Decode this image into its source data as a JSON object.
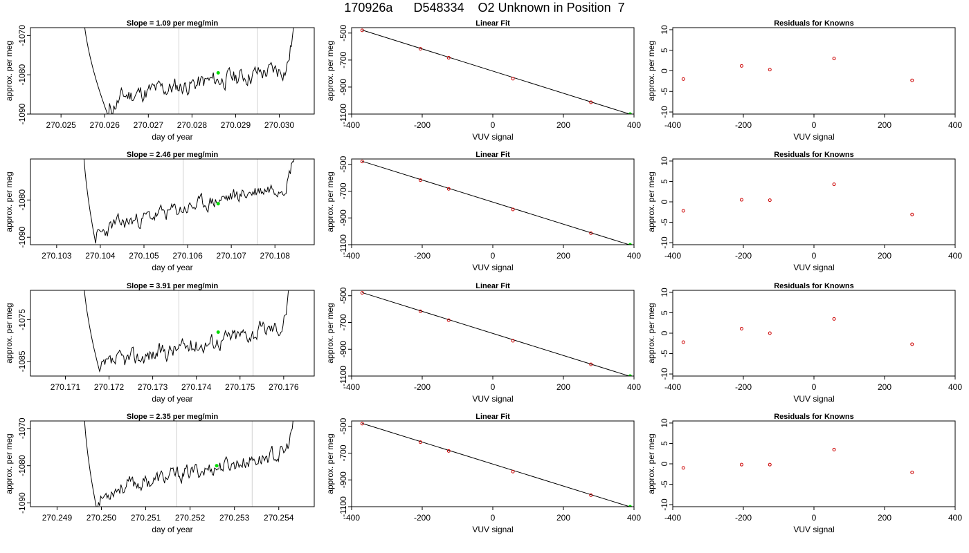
{
  "title": "170926a      D548334    O2 Unknown in Position  7",
  "colors": {
    "trace": "#000000",
    "vline": "#d0d0d0",
    "current": "#00dd00",
    "known": "#cc0000",
    "fit": "#000000"
  },
  "chart_data": [
    {
      "type": "line",
      "title": "Slope =  1.09  per meg/min",
      "xlabel": "day of year",
      "ylabel": "approx. per meg",
      "xlim": [
        270.0243,
        270.0308
      ],
      "ylim": [
        -1090,
        -1068
      ],
      "xticks": [
        270.025,
        270.026,
        270.027,
        270.028,
        270.029,
        270.03
      ],
      "xtick_labels": [
        "270.025",
        "270.026",
        "270.027",
        "270.028",
        "270.029",
        "270.030"
      ],
      "yticks": [
        -1090,
        -1080,
        -1070
      ],
      "ytick_labels": [
        "-1090",
        "-1080",
        "-1070"
      ],
      "vlines": [
        270.0277,
        270.0295
      ],
      "trace": {
        "start": 270.0255,
        "end": 270.0304,
        "first": -1062,
        "dip": -1091,
        "dip_at": 270.0261,
        "trend_start": -1086,
        "trend_end": -1078,
        "tail_to": -1062,
        "noise": 1.8,
        "seed": 11
      },
      "point": {
        "x": 270.0286,
        "y": -1079.5
      }
    },
    {
      "type": "scatter",
      "title": "Linear Fit",
      "xlabel": "VUV signal",
      "ylabel": "approx. per meg",
      "xlim": [
        -400,
        400
      ],
      "ylim": [
        -1100,
        -460
      ],
      "xticks": [
        -400,
        -200,
        0,
        200,
        400
      ],
      "xtick_labels": [
        "-400",
        "-200",
        "0",
        "200",
        "400"
      ],
      "yticks": [
        -500,
        -700,
        -900,
        -1100
      ],
      "ytick_labels": [
        "-500",
        "-700",
        "-900",
        "-1100"
      ],
      "points": [
        {
          "x": -370,
          "y": -480
        },
        {
          "x": -205,
          "y": -617
        },
        {
          "x": -125,
          "y": -683
        },
        {
          "x": 57,
          "y": -838
        },
        {
          "x": 278,
          "y": -1013
        }
      ],
      "line": {
        "x0": -370,
        "y0": -478,
        "x1": 390,
        "y1": -1102
      },
      "current": {
        "x": 389,
        "y": -1100
      }
    },
    {
      "type": "scatter",
      "title": "Residuals for Knowns",
      "xlabel": "VUV signal",
      "ylabel": "approx. per meg",
      "xlim": [
        -400,
        400
      ],
      "ylim": [
        -10.5,
        10.5
      ],
      "xticks": [
        -400,
        -200,
        0,
        200,
        400
      ],
      "xtick_labels": [
        "-400",
        "-200",
        "0",
        "200",
        "400"
      ],
      "yticks": [
        -10,
        -5,
        0,
        5,
        10
      ],
      "ytick_labels": [
        "-10",
        "-5",
        "0",
        "5",
        "10"
      ],
      "points": [
        {
          "x": -370,
          "y": -2.0
        },
        {
          "x": -205,
          "y": 1.2
        },
        {
          "x": -125,
          "y": 0.3
        },
        {
          "x": 57,
          "y": 3.0
        },
        {
          "x": 278,
          "y": -2.3
        }
      ]
    },
    {
      "type": "line",
      "title": "Slope =  2.46  per meg/min",
      "xlabel": "day of year",
      "ylabel": "approx. per meg",
      "xlim": [
        270.1024,
        270.1089
      ],
      "ylim": [
        -1092,
        -1069
      ],
      "xticks": [
        270.103,
        270.104,
        270.105,
        270.106,
        270.107,
        270.108
      ],
      "xtick_labels": [
        "270.103",
        "270.104",
        "270.105",
        "270.106",
        "270.107",
        "270.108"
      ],
      "yticks": [
        -1090,
        -1080
      ],
      "ytick_labels": [
        "-1090",
        "-1080"
      ],
      "vlines": [
        270.1059,
        270.1076
      ],
      "trace": {
        "start": 270.1036,
        "end": 270.1085,
        "first": -1062,
        "dip": -1092,
        "dip_at": 270.1039,
        "trend_start": -1088,
        "trend_end": -1075,
        "tail_to": -1064,
        "noise": 1.6,
        "seed": 23
      },
      "point": {
        "x": 270.1067,
        "y": -1081
      }
    },
    {
      "type": "scatter",
      "title": "Linear Fit",
      "xlabel": "VUV signal",
      "ylabel": "approx. per meg",
      "xlim": [
        -400,
        400
      ],
      "ylim": [
        -1100,
        -460
      ],
      "xticks": [
        -400,
        -200,
        0,
        200,
        400
      ],
      "xtick_labels": [
        "-400",
        "-200",
        "0",
        "200",
        "400"
      ],
      "yticks": [
        -500,
        -700,
        -900,
        -1100
      ],
      "ytick_labels": [
        "-500",
        "-700",
        "-900",
        "-1100"
      ],
      "points": [
        {
          "x": -370,
          "y": -479
        },
        {
          "x": -205,
          "y": -618
        },
        {
          "x": -125,
          "y": -683
        },
        {
          "x": 57,
          "y": -837
        },
        {
          "x": 278,
          "y": -1014
        }
      ],
      "line": {
        "x0": -370,
        "y0": -477,
        "x1": 390,
        "y1": -1103
      },
      "current": {
        "x": 389,
        "y": -1100
      }
    },
    {
      "type": "scatter",
      "title": "Residuals for Knowns",
      "xlabel": "VUV signal",
      "ylabel": "approx. per meg",
      "xlim": [
        -400,
        400
      ],
      "ylim": [
        -10.5,
        10.5
      ],
      "xticks": [
        -400,
        -200,
        0,
        200,
        400
      ],
      "xtick_labels": [
        "-400",
        "-200",
        "0",
        "200",
        "400"
      ],
      "yticks": [
        -10,
        -5,
        0,
        5,
        10
      ],
      "ytick_labels": [
        "-10",
        "-5",
        "0",
        "5",
        "10"
      ],
      "points": [
        {
          "x": -370,
          "y": -2.2
        },
        {
          "x": -205,
          "y": 0.5
        },
        {
          "x": -125,
          "y": 0.4
        },
        {
          "x": 57,
          "y": 4.3
        },
        {
          "x": 278,
          "y": -3.1
        }
      ]
    },
    {
      "type": "line",
      "title": "Slope =  3.91  per meg/min",
      "xlabel": "day of year",
      "ylabel": "approx. per meg",
      "xlim": [
        270.1702,
        270.1767
      ],
      "ylim": [
        -1088.5,
        -1068
      ],
      "xticks": [
        270.171,
        270.172,
        270.173,
        270.174,
        270.175,
        270.176
      ],
      "xtick_labels": [
        "270.171",
        "270.172",
        "270.173",
        "270.174",
        "270.175",
        "270.176"
      ],
      "yticks": [
        -1085,
        -1075
      ],
      "ytick_labels": [
        "-1085",
        "-1075"
      ],
      "vlines": [
        270.1736,
        270.1753
      ],
      "trace": {
        "start": 270.1714,
        "end": 270.1762,
        "first": -1062,
        "dip": -1088,
        "dip_at": 270.1718,
        "trend_start": -1086,
        "trend_end": -1076,
        "tail_to": -1064,
        "noise": 1.6,
        "seed": 37
      },
      "point": {
        "x": 270.1745,
        "y": -1078
      }
    },
    {
      "type": "scatter",
      "title": "Linear Fit",
      "xlabel": "VUV signal",
      "ylabel": "approx. per meg",
      "xlim": [
        -400,
        400
      ],
      "ylim": [
        -1100,
        -460
      ],
      "xticks": [
        -400,
        -200,
        0,
        200,
        400
      ],
      "xtick_labels": [
        "-400",
        "-200",
        "0",
        "200",
        "400"
      ],
      "yticks": [
        -500,
        -700,
        -900,
        -1100
      ],
      "ytick_labels": [
        "-500",
        "-700",
        "-900",
        "-1100"
      ],
      "points": [
        {
          "x": -370,
          "y": -479
        },
        {
          "x": -205,
          "y": -617
        },
        {
          "x": -125,
          "y": -683
        },
        {
          "x": 57,
          "y": -837
        },
        {
          "x": 278,
          "y": -1013
        }
      ],
      "line": {
        "x0": -370,
        "y0": -477,
        "x1": 390,
        "y1": -1103
      },
      "current": {
        "x": 389,
        "y": -1100
      }
    },
    {
      "type": "scatter",
      "title": "Residuals for Knowns",
      "xlabel": "VUV signal",
      "ylabel": "approx. per meg",
      "xlim": [
        -400,
        400
      ],
      "ylim": [
        -10.5,
        10.5
      ],
      "xticks": [
        -400,
        -200,
        0,
        200,
        400
      ],
      "xtick_labels": [
        "-400",
        "-200",
        "0",
        "200",
        "400"
      ],
      "yticks": [
        -10,
        -5,
        0,
        5,
        10
      ],
      "ytick_labels": [
        "-10",
        "-5",
        "0",
        "5",
        "10"
      ],
      "points": [
        {
          "x": -370,
          "y": -2.2
        },
        {
          "x": -205,
          "y": 1.1
        },
        {
          "x": -125,
          "y": 0.0
        },
        {
          "x": 57,
          "y": 3.5
        },
        {
          "x": 278,
          "y": -2.7
        }
      ]
    },
    {
      "type": "line",
      "title": "Slope =  2.35  per meg/min",
      "xlabel": "day of year",
      "ylabel": "approx. per meg",
      "xlim": [
        270.2484,
        270.2548
      ],
      "ylim": [
        -1091,
        -1068
      ],
      "xticks": [
        270.249,
        270.25,
        270.251,
        270.252,
        270.253,
        270.254
      ],
      "xtick_labels": [
        "270.249",
        "270.250",
        "270.251",
        "270.252",
        "270.253",
        "270.254"
      ],
      "yticks": [
        -1090,
        -1080,
        -1070
      ],
      "ytick_labels": [
        "-1090",
        "-1080",
        "-1070"
      ],
      "vlines": [
        270.2517,
        270.2534
      ],
      "trace": {
        "start": 270.2496,
        "end": 270.2544,
        "first": -1062,
        "dip": -1092,
        "dip_at": 270.2499,
        "trend_start": -1087,
        "trend_end": -1076,
        "tail_to": -1064,
        "noise": 1.6,
        "seed": 53
      },
      "point": {
        "x": 270.2526,
        "y": -1080
      }
    },
    {
      "type": "scatter",
      "title": "Linear Fit",
      "xlabel": "VUV signal",
      "ylabel": "approx. per meg",
      "xlim": [
        -400,
        400
      ],
      "ylim": [
        -1100,
        -460
      ],
      "xticks": [
        -400,
        -200,
        0,
        200,
        400
      ],
      "xtick_labels": [
        "-400",
        "-200",
        "0",
        "200",
        "400"
      ],
      "yticks": [
        -500,
        -700,
        -900,
        -1100
      ],
      "ytick_labels": [
        "-500",
        "-700",
        "-900",
        "-1100"
      ],
      "points": [
        {
          "x": -370,
          "y": -480
        },
        {
          "x": -205,
          "y": -618
        },
        {
          "x": -125,
          "y": -684
        },
        {
          "x": 57,
          "y": -838
        },
        {
          "x": 278,
          "y": -1014
        }
      ],
      "line": {
        "x0": -370,
        "y0": -478,
        "x1": 390,
        "y1": -1102
      },
      "current": {
        "x": 389,
        "y": -1100
      }
    },
    {
      "type": "scatter",
      "title": "Residuals for Knowns",
      "xlabel": "VUV signal",
      "ylabel": "approx. per meg",
      "xlim": [
        -400,
        400
      ],
      "ylim": [
        -10.5,
        10.5
      ],
      "xticks": [
        -400,
        -200,
        0,
        200,
        400
      ],
      "xtick_labels": [
        "-400",
        "-200",
        "0",
        "200",
        "400"
      ],
      "yticks": [
        -10,
        -5,
        0,
        5,
        10
      ],
      "ytick_labels": [
        "-10",
        "-5",
        "0",
        "5",
        "10"
      ],
      "points": [
        {
          "x": -370,
          "y": -1.0
        },
        {
          "x": -205,
          "y": -0.2
        },
        {
          "x": -125,
          "y": -0.2
        },
        {
          "x": 57,
          "y": 3.5
        },
        {
          "x": 278,
          "y": -2.1
        }
      ]
    }
  ]
}
